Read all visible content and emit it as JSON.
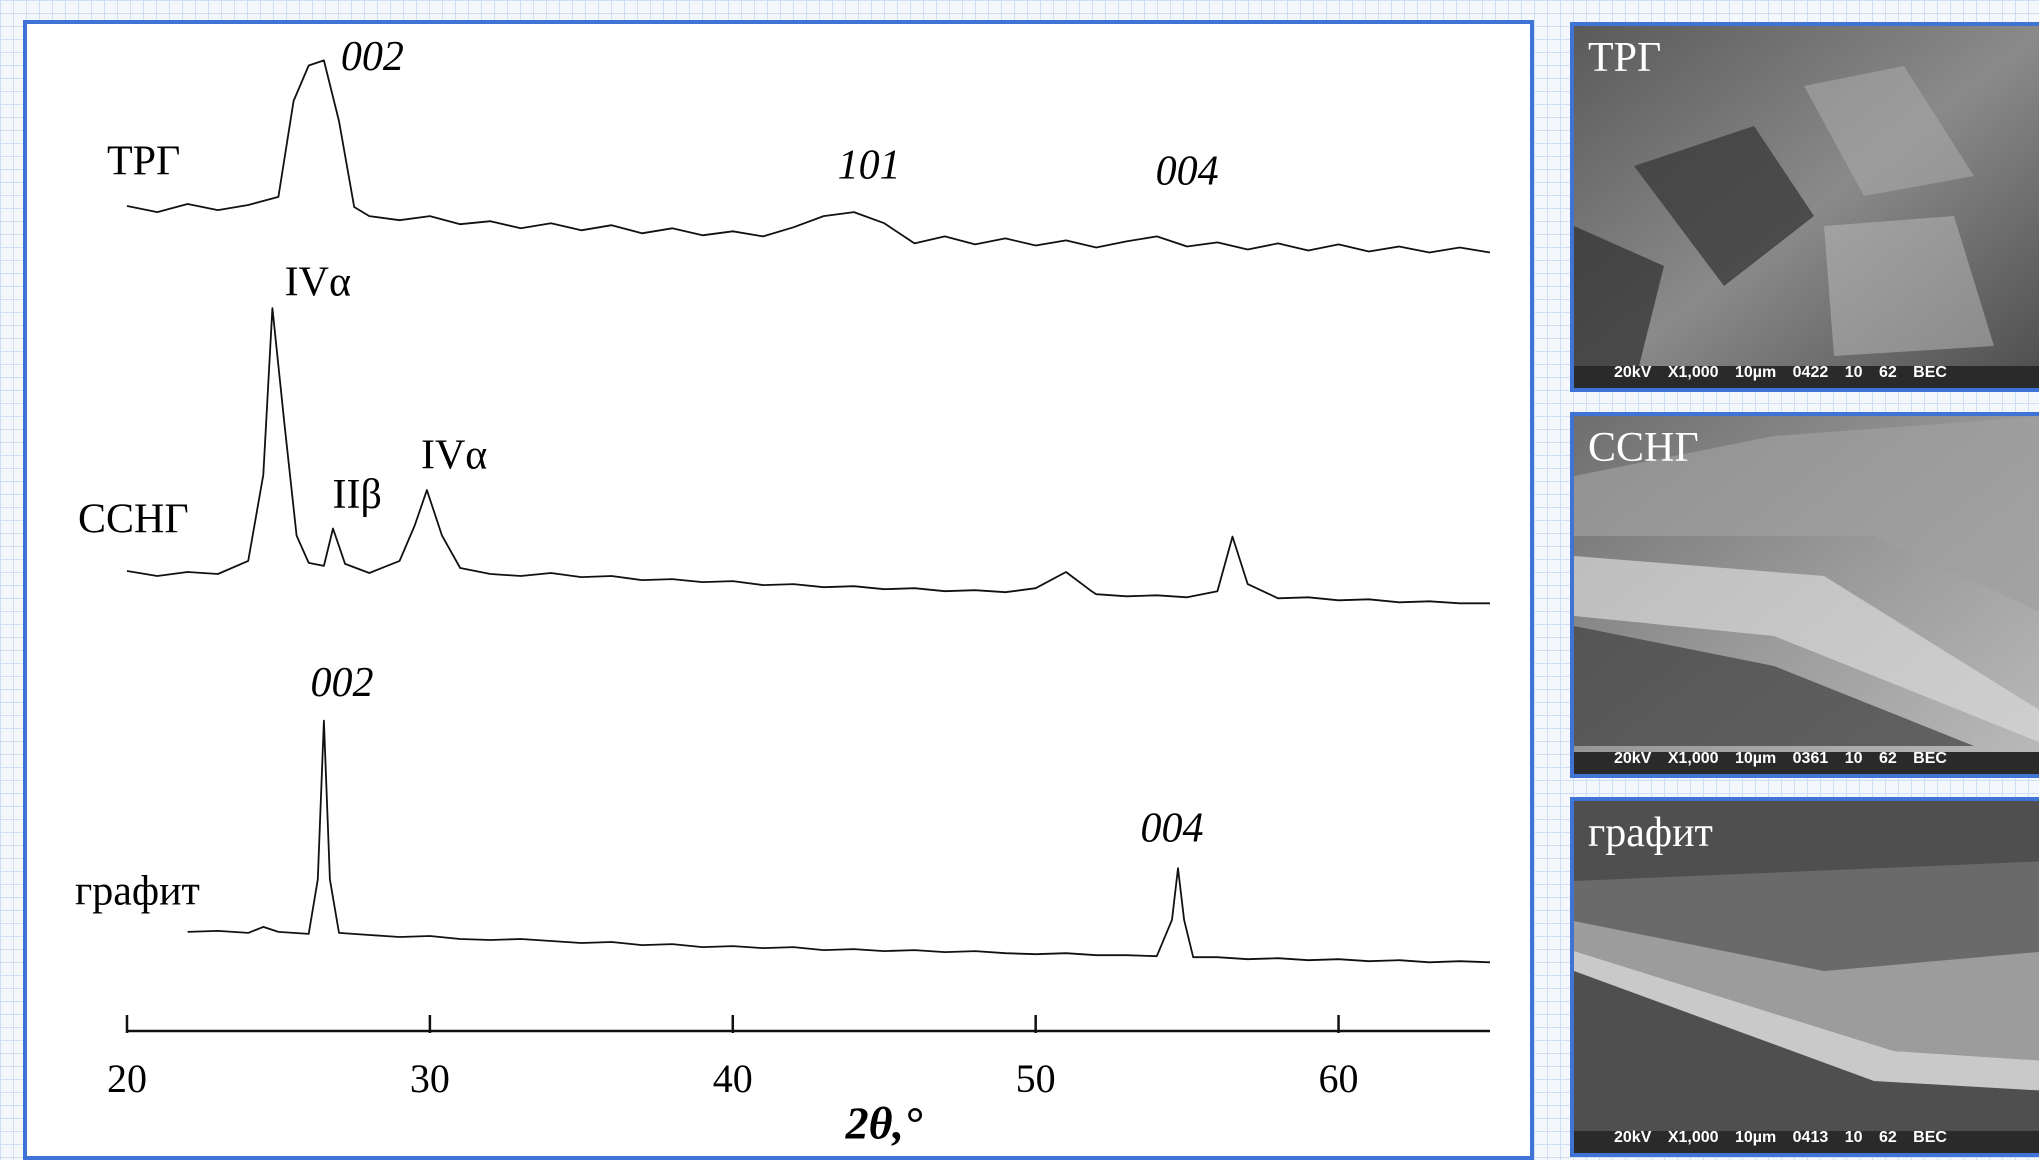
{
  "chart_data": {
    "type": "line",
    "xlabel": "2θ,°",
    "xlim": [
      20,
      65
    ],
    "xticks": [
      20,
      30,
      40,
      50,
      60
    ],
    "ylim": [
      0,
      100
    ],
    "color": "#111111",
    "series": [
      {
        "name": "ТРГ",
        "color": "#111111",
        "x": [
          20,
          21,
          22,
          23,
          24,
          25,
          25.5,
          26,
          26.5,
          27,
          27.5,
          28,
          29,
          30,
          31,
          32,
          33,
          34,
          35,
          36,
          37,
          38,
          39,
          40,
          41,
          42,
          43,
          44,
          45,
          46,
          47,
          48,
          49,
          50,
          51,
          52,
          53,
          54,
          55,
          56,
          57,
          58,
          59,
          60,
          61,
          62,
          63,
          64,
          65
        ],
        "values": [
          81.6,
          81.0,
          81.8,
          81.2,
          81.7,
          82.5,
          92,
          95.5,
          96,
          90,
          81.5,
          80.6,
          80.2,
          80.6,
          79.8,
          80.1,
          79.4,
          79.9,
          79.2,
          79.7,
          78.9,
          79.4,
          78.7,
          79.1,
          78.6,
          79.5,
          80.6,
          81.0,
          79.9,
          77.9,
          78.6,
          77.8,
          78.4,
          77.7,
          78.2,
          77.5,
          78.1,
          78.6,
          77.6,
          78.0,
          77.3,
          77.9,
          77.2,
          77.8,
          77.1,
          77.6,
          77.0,
          77.5,
          77.0
        ]
      },
      {
        "name": "ССНГ",
        "color": "#111111",
        "x": [
          20,
          21,
          22,
          23,
          24,
          24.5,
          24.8,
          25.2,
          25.6,
          26,
          26.5,
          26.8,
          27.2,
          28,
          29,
          29.5,
          29.9,
          30.4,
          31,
          32,
          33,
          34,
          35,
          36,
          37,
          38,
          39,
          40,
          41,
          42,
          43,
          44,
          45,
          46,
          47,
          48,
          49,
          50,
          51,
          51.8,
          52,
          53,
          54,
          55,
          56,
          56.5,
          57,
          58,
          59,
          60,
          61,
          62,
          63,
          64,
          65
        ],
        "values": [
          45.5,
          45.0,
          45.4,
          45.2,
          46.5,
          55,
          71.5,
          60,
          49,
          46.3,
          46.0,
          49.7,
          46.2,
          45.3,
          46.5,
          50,
          53.5,
          49,
          45.8,
          45.2,
          45.0,
          45.3,
          44.9,
          45.0,
          44.6,
          44.7,
          44.4,
          44.5,
          44.1,
          44.2,
          43.9,
          44.0,
          43.7,
          43.8,
          43.5,
          43.6,
          43.4,
          43.8,
          45.4,
          43.6,
          43.2,
          43.0,
          43.1,
          42.9,
          43.5,
          48.9,
          44.2,
          42.8,
          42.9,
          42.6,
          42.7,
          42.4,
          42.5,
          42.3,
          42.3
        ]
      },
      {
        "name": "графит",
        "color": "#111111",
        "x": [
          22,
          23,
          24,
          24.5,
          25,
          26,
          26.3,
          26.5,
          26.7,
          27,
          28,
          29,
          30,
          31,
          32,
          33,
          34,
          35,
          36,
          37,
          38,
          39,
          40,
          41,
          42,
          43,
          44,
          45,
          46,
          47,
          48,
          49,
          50,
          51,
          52,
          53,
          54,
          54.5,
          54.7,
          54.9,
          55.2,
          56,
          57,
          58,
          59,
          60,
          61,
          62,
          63,
          64,
          65
        ],
        "values": [
          9.8,
          9.9,
          9.7,
          10.3,
          9.8,
          9.6,
          15,
          30.7,
          15,
          9.7,
          9.5,
          9.3,
          9.4,
          9.1,
          9.0,
          9.1,
          8.9,
          8.7,
          8.8,
          8.5,
          8.6,
          8.3,
          8.4,
          8.2,
          8.3,
          8.0,
          8.1,
          7.9,
          8.0,
          7.8,
          7.9,
          7.7,
          7.6,
          7.7,
          7.5,
          7.5,
          7.4,
          11,
          16.1,
          11,
          7.3,
          7.3,
          7.1,
          7.2,
          7.0,
          7.1,
          6.9,
          7.0,
          6.8,
          6.9,
          6.8
        ]
      }
    ],
    "annotations": [
      {
        "text": "002",
        "x": 28.1,
        "y": 96,
        "italic": true
      },
      {
        "text": "101",
        "x": 44.5,
        "y": 85.3,
        "italic": true
      },
      {
        "text": "004",
        "x": 55.0,
        "y": 84.7,
        "italic": true
      },
      {
        "text": "IVα",
        "x": 26.3,
        "y": 73.7,
        "italic": false
      },
      {
        "text": "IIβ",
        "x": 27.6,
        "y": 52.7,
        "italic": false
      },
      {
        "text": "IVα",
        "x": 30.8,
        "y": 56.6,
        "italic": false
      },
      {
        "text": "002",
        "x": 27.1,
        "y": 34.1,
        "italic": true
      },
      {
        "text": "004",
        "x": 54.5,
        "y": 19.7,
        "italic": true
      }
    ]
  },
  "panels": [
    {
      "label": "ТРГ",
      "footer": "20kV X1,000 10µm 0422 10 62 BEC"
    },
    {
      "label": "ССНГ",
      "footer": "20kV X1,000 10µm 0361 10 62 BEC"
    },
    {
      "label": "графит",
      "footer": "20kV X1,000 10µm 0413 10 62 BEC"
    }
  ]
}
